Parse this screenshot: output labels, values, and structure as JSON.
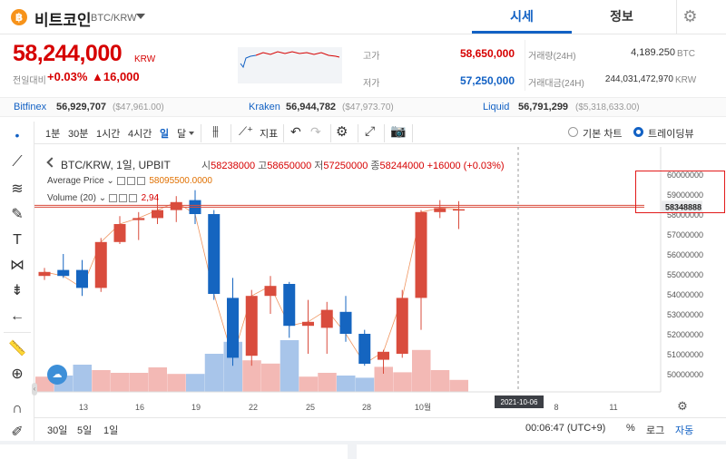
{
  "header": {
    "coin_icon": "฿",
    "coin_name": "비트코인",
    "pair": "BTC/KRW",
    "tabs": [
      "시세",
      "정보"
    ],
    "settings_icon": "gear-icon"
  },
  "price": {
    "current": "58,244,000",
    "unit": "KRW",
    "change_label": "전일대비",
    "change_pct": "+0.03%",
    "change_amt": "▲16,000"
  },
  "stats": {
    "high_label": "고가",
    "high": "58,650,000",
    "low_label": "저가",
    "low": "57,250,000",
    "vol_label": "거래량(24H)",
    "vol": "4,189.250",
    "vol_unit": "BTC",
    "amt_label": "거래대금(24H)",
    "amt": "244,031,472,970",
    "amt_unit": "KRW"
  },
  "exchanges": [
    {
      "name": "Bitfinex",
      "price": "56,929,707",
      "usd": "($47,961.00)"
    },
    {
      "name": "Kraken",
      "price": "56,944,782",
      "usd": "($47,973.70)"
    },
    {
      "name": "Liquid",
      "price": "56,791,299",
      "usd": "($5,318,633.00)"
    }
  ],
  "toolbar": {
    "intervals": [
      "1분",
      "30분",
      "1시간",
      "4시간",
      "일",
      "달"
    ],
    "active_interval": "일",
    "indicator_label": "지표",
    "basic_chart": "기본 차트",
    "tradingview": "트레이딩뷰"
  },
  "legend": {
    "title": "BTC/KRW, 1일, UPBIT",
    "open_k": "시",
    "open": "58238000",
    "high_k": "고",
    "high": "58650000",
    "low_k": "저",
    "low": "57250000",
    "close_k": "종",
    "close": "58244000",
    "change": "+16000 (+0.03%)",
    "avg_label": "Average Price",
    "avg_value": "58095500.0000",
    "vol_label": "Volume (20)",
    "vol_value": "2,94"
  },
  "current_price_tag": "58348888",
  "chart_data": {
    "type": "candlestick",
    "y_ticks": [
      "60000000",
      "59000000",
      "58000000",
      "57000000",
      "56000000",
      "55000000",
      "54000000",
      "53000000",
      "52000000",
      "51000000",
      "50000000"
    ],
    "x_ticks": [
      "13",
      "16",
      "19",
      "22",
      "25",
      "28",
      "10월",
      "8",
      "11"
    ],
    "crosshair_date": "2021-10-06",
    "candles": [
      {
        "o": 54900000,
        "c": 55100000,
        "h": 55300000,
        "l": 54700000,
        "v": 0.28
      },
      {
        "o": 55200000,
        "c": 54900000,
        "h": 56000000,
        "l": 54800000,
        "v": 0.3
      },
      {
        "o": 55200000,
        "c": 54300000,
        "h": 55700000,
        "l": 53900000,
        "v": 0.5
      },
      {
        "o": 54300000,
        "c": 56600000,
        "h": 56800000,
        "l": 54100000,
        "v": 0.4
      },
      {
        "o": 56600000,
        "c": 57500000,
        "h": 57900000,
        "l": 56500000,
        "v": 0.35
      },
      {
        "o": 57700000,
        "c": 57800000,
        "h": 58100000,
        "l": 56700000,
        "v": 0.35
      },
      {
        "o": 57800000,
        "c": 58200000,
        "h": 59000000,
        "l": 57500000,
        "v": 0.45
      },
      {
        "o": 58200000,
        "c": 58600000,
        "h": 58900000,
        "l": 57600000,
        "v": 0.33
      },
      {
        "o": 58700000,
        "c": 58000000,
        "h": 59200000,
        "l": 57500000,
        "v": 0.33
      },
      {
        "o": 58000000,
        "c": 54000000,
        "h": 58200000,
        "l": 53700000,
        "v": 0.7
      },
      {
        "o": 53800000,
        "c": 50800000,
        "h": 54800000,
        "l": 50400000,
        "v": 0.92
      },
      {
        "o": 50900000,
        "c": 53900000,
        "h": 54200000,
        "l": 50400000,
        "v": 0.58
      },
      {
        "o": 53900000,
        "c": 54400000,
        "h": 54900000,
        "l": 53000000,
        "v": 0.52
      },
      {
        "o": 54500000,
        "c": 52400000,
        "h": 54600000,
        "l": 51800000,
        "v": 0.95
      },
      {
        "o": 52400000,
        "c": 52600000,
        "h": 53700000,
        "l": 51000000,
        "v": 0.28
      },
      {
        "o": 52300000,
        "c": 53200000,
        "h": 53600000,
        "l": 51000000,
        "v": 0.35
      },
      {
        "o": 53100000,
        "c": 52000000,
        "h": 53900000,
        "l": 51600000,
        "v": 0.3
      },
      {
        "o": 52000000,
        "c": 50500000,
        "h": 52200000,
        "l": 50400000,
        "v": 0.26
      },
      {
        "o": 50700000,
        "c": 51100000,
        "h": 51200000,
        "l": 50000000,
        "v": 0.46
      },
      {
        "o": 51000000,
        "c": 53800000,
        "h": 54200000,
        "l": 50800000,
        "v": 0.36
      },
      {
        "o": 53800000,
        "c": 58100000,
        "h": 58200000,
        "l": 52200000,
        "v": 0.77
      },
      {
        "o": 58100000,
        "c": 58300000,
        "h": 58700000,
        "l": 57800000,
        "v": 0.4
      },
      {
        "o": 58238000,
        "c": 58244000,
        "h": 58650000,
        "l": 57250000,
        "v": 0.22
      }
    ]
  }
}
